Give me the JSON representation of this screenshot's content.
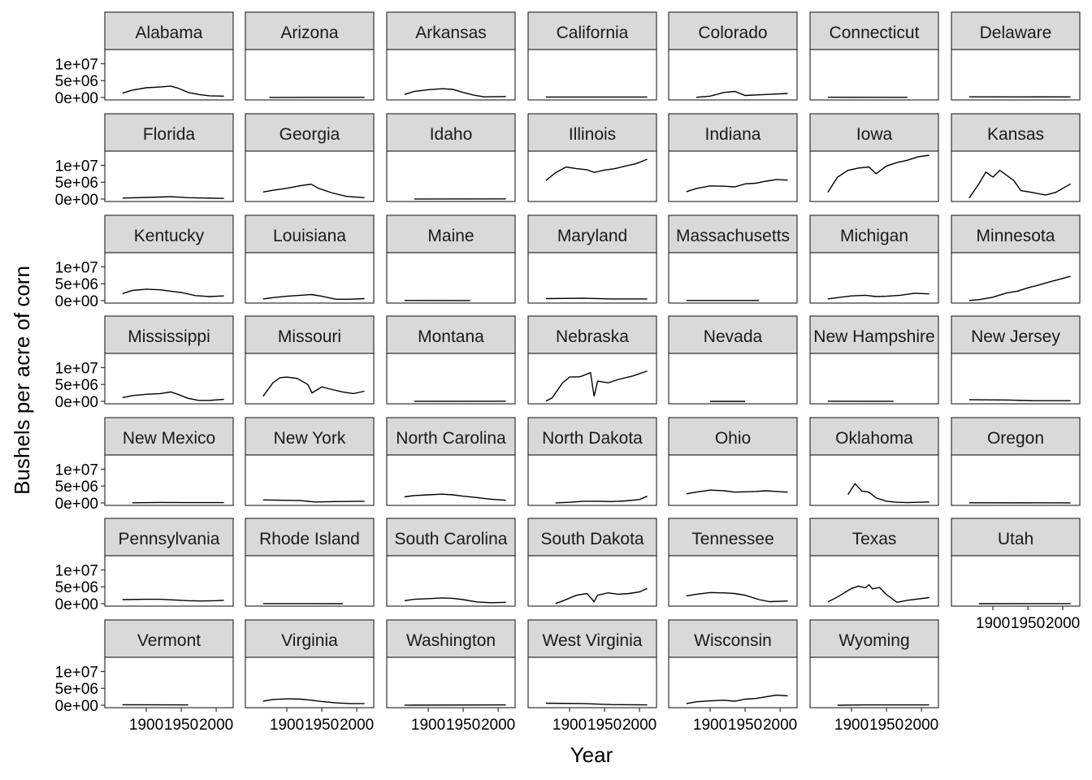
{
  "chart_data": {
    "type": "line",
    "facet": "state",
    "xlabel": "Year",
    "ylabel": "Bushels per acre of corn",
    "x_ticks": [
      "1900",
      "1950",
      "2000"
    ],
    "y_ticks": [
      "0e+00",
      "5e+06",
      "1e+07"
    ],
    "xlim": [
      1850,
      2015
    ],
    "ylim": [
      0,
      13000000
    ],
    "series": [
      {
        "name": "Alabama",
        "x": [
          1866,
          1880,
          1900,
          1920,
          1935,
          1945,
          1960,
          1975,
          1990,
          2011
        ],
        "y": [
          1300000,
          2200000,
          2900000,
          3100000,
          3400000,
          2800000,
          1500000,
          900000,
          500000,
          400000
        ]
      },
      {
        "name": "Arizona",
        "x": [
          1875,
          2011
        ],
        "y": [
          30000,
          40000
        ]
      },
      {
        "name": "Arkansas",
        "x": [
          1866,
          1880,
          1900,
          1920,
          1935,
          1950,
          1965,
          1980,
          2011
        ],
        "y": [
          900000,
          1800000,
          2300000,
          2600000,
          2400000,
          1500000,
          700000,
          200000,
          300000
        ]
      },
      {
        "name": "California",
        "x": [
          1866,
          2011
        ],
        "y": [
          150000,
          150000
        ]
      },
      {
        "name": "Colorado",
        "x": [
          1880,
          1900,
          1920,
          1935,
          1950,
          1980,
          2011
        ],
        "y": [
          40000,
          400000,
          1500000,
          1800000,
          600000,
          900000,
          1200000
        ]
      },
      {
        "name": "Connecticut",
        "x": [
          1866,
          1980
        ],
        "y": [
          80000,
          60000
        ]
      },
      {
        "name": "Delaware",
        "x": [
          1866,
          2011
        ],
        "y": [
          200000,
          180000
        ]
      },
      {
        "name": "Florida",
        "x": [
          1866,
          1920,
          1935,
          1960,
          2011
        ],
        "y": [
          300000,
          600000,
          700000,
          400000,
          200000
        ]
      },
      {
        "name": "Georgia",
        "x": [
          1866,
          1880,
          1900,
          1920,
          1935,
          1945,
          1965,
          1985,
          2011
        ],
        "y": [
          2100000,
          2600000,
          3200000,
          4000000,
          4400000,
          3200000,
          1800000,
          800000,
          400000
        ]
      },
      {
        "name": "Idaho",
        "x": [
          1880,
          2011
        ],
        "y": [
          20000,
          40000
        ]
      },
      {
        "name": "Illinois",
        "x": [
          1866,
          1880,
          1895,
          1910,
          1925,
          1935,
          1950,
          1965,
          1980,
          1995,
          2011
        ],
        "y": [
          5500000,
          7800000,
          9500000,
          9000000,
          8700000,
          7900000,
          8600000,
          9000000,
          9800000,
          10500000,
          11800000
        ]
      },
      {
        "name": "Indiana",
        "x": [
          1866,
          1880,
          1900,
          1920,
          1935,
          1950,
          1965,
          1980,
          1995,
          2011
        ],
        "y": [
          2200000,
          3100000,
          3900000,
          3800000,
          3600000,
          4500000,
          4700000,
          5300000,
          5800000,
          5600000
        ]
      },
      {
        "name": "Iowa",
        "x": [
          1866,
          1880,
          1895,
          1910,
          1925,
          1935,
          1950,
          1965,
          1980,
          1995,
          2011
        ],
        "y": [
          2000000,
          6500000,
          8500000,
          9200000,
          9500000,
          7500000,
          9800000,
          10800000,
          11500000,
          12500000,
          13000000
        ]
      },
      {
        "name": "Kansas",
        "x": [
          1866,
          1880,
          1890,
          1900,
          1910,
          1920,
          1930,
          1940,
          1955,
          1975,
          1990,
          2011
        ],
        "y": [
          300000,
          4500000,
          8000000,
          6500000,
          8500000,
          7000000,
          5500000,
          2500000,
          2000000,
          1200000,
          2000000,
          4500000
        ]
      },
      {
        "name": "Kentucky",
        "x": [
          1866,
          1880,
          1900,
          1920,
          1935,
          1950,
          1970,
          1990,
          2011
        ],
        "y": [
          2100000,
          3000000,
          3400000,
          3200000,
          2800000,
          2400000,
          1500000,
          1200000,
          1400000
        ]
      },
      {
        "name": "Louisiana",
        "x": [
          1866,
          1880,
          1900,
          1920,
          1935,
          1950,
          1970,
          1990,
          2011
        ],
        "y": [
          500000,
          900000,
          1300000,
          1600000,
          1800000,
          1300000,
          400000,
          400000,
          600000
        ]
      },
      {
        "name": "Maine",
        "x": [
          1866,
          1960
        ],
        "y": [
          50000,
          30000
        ]
      },
      {
        "name": "Maryland",
        "x": [
          1866,
          1920,
          1960,
          2011
        ],
        "y": [
          600000,
          700000,
          500000,
          500000
        ]
      },
      {
        "name": "Massachusetts",
        "x": [
          1866,
          1970
        ],
        "y": [
          60000,
          40000
        ]
      },
      {
        "name": "Michigan",
        "x": [
          1866,
          1880,
          1900,
          1920,
          1935,
          1950,
          1970,
          1990,
          2011
        ],
        "y": [
          500000,
          900000,
          1400000,
          1600000,
          1200000,
          1300000,
          1600000,
          2200000,
          2000000
        ]
      },
      {
        "name": "Minnesota",
        "x": [
          1866,
          1880,
          1900,
          1920,
          1935,
          1950,
          1965,
          1980,
          1995,
          2011
        ],
        "y": [
          50000,
          300000,
          1000000,
          2300000,
          2800000,
          3800000,
          4600000,
          5500000,
          6300000,
          7200000
        ]
      },
      {
        "name": "Mississippi",
        "x": [
          1866,
          1880,
          1900,
          1920,
          1935,
          1945,
          1960,
          1975,
          1990,
          2011
        ],
        "y": [
          1100000,
          1700000,
          2100000,
          2300000,
          2800000,
          2100000,
          900000,
          300000,
          300000,
          600000
        ]
      },
      {
        "name": "Missouri",
        "x": [
          1866,
          1880,
          1890,
          1900,
          1915,
          1930,
          1936,
          1950,
          1965,
          1980,
          1995,
          2011
        ],
        "y": [
          1500000,
          5500000,
          7000000,
          7200000,
          6800000,
          5000000,
          2500000,
          4300000,
          3500000,
          2800000,
          2300000,
          3000000
        ]
      },
      {
        "name": "Montana",
        "x": [
          1880,
          2011
        ],
        "y": [
          20000,
          40000
        ]
      },
      {
        "name": "Nebraska",
        "x": [
          1866,
          1875,
          1890,
          1900,
          1915,
          1930,
          1935,
          1940,
          1955,
          1970,
          1990,
          2011
        ],
        "y": [
          100000,
          1000000,
          5500000,
          7200000,
          7300000,
          8500000,
          1500000,
          6000000,
          5500000,
          6500000,
          7500000,
          9000000
        ]
      },
      {
        "name": "Nevada",
        "x": [
          1900,
          1950
        ],
        "y": [
          10000,
          10000
        ]
      },
      {
        "name": "New Hampshire",
        "x": [
          1866,
          1960
        ],
        "y": [
          40000,
          20000
        ]
      },
      {
        "name": "New Jersey",
        "x": [
          1866,
          1920,
          1960,
          2011
        ],
        "y": [
          500000,
          400000,
          200000,
          200000
        ]
      },
      {
        "name": "New Mexico",
        "x": [
          1880,
          1920,
          1960,
          2011
        ],
        "y": [
          50000,
          150000,
          100000,
          100000
        ]
      },
      {
        "name": "New York",
        "x": [
          1866,
          1920,
          1940,
          1970,
          2011
        ],
        "y": [
          900000,
          700000,
          300000,
          400000,
          500000
        ]
      },
      {
        "name": "North Carolina",
        "x": [
          1866,
          1880,
          1900,
          1920,
          1935,
          1950,
          1970,
          1990,
          2011
        ],
        "y": [
          1800000,
          2200000,
          2400000,
          2600000,
          2400000,
          2000000,
          1600000,
          1100000,
          800000
        ]
      },
      {
        "name": "North Dakota",
        "x": [
          1880,
          1900,
          1920,
          1940,
          1960,
          1980,
          2000,
          2011
        ],
        "y": [
          20000,
          200000,
          500000,
          500000,
          400000,
          600000,
          1000000,
          2000000
        ]
      },
      {
        "name": "Ohio",
        "x": [
          1866,
          1880,
          1900,
          1920,
          1935,
          1950,
          1965,
          1980,
          1995,
          2011
        ],
        "y": [
          2700000,
          3200000,
          3800000,
          3600000,
          3200000,
          3300000,
          3400000,
          3600000,
          3400000,
          3200000
        ]
      },
      {
        "name": "Oklahoma",
        "x": [
          1895,
          1905,
          1915,
          1925,
          1935,
          1950,
          1965,
          1980,
          2011
        ],
        "y": [
          2500000,
          5700000,
          3500000,
          3200000,
          1500000,
          500000,
          200000,
          100000,
          300000
        ]
      },
      {
        "name": "Oregon",
        "x": [
          1866,
          2011
        ],
        "y": [
          50000,
          30000
        ]
      },
      {
        "name": "Pennsylvania",
        "x": [
          1866,
          1900,
          1920,
          1940,
          1960,
          1980,
          2000,
          2011
        ],
        "y": [
          1200000,
          1300000,
          1300000,
          1100000,
          900000,
          800000,
          900000,
          1000000
        ]
      },
      {
        "name": "Rhode Island",
        "x": [
          1866,
          1980
        ],
        "y": [
          20000,
          10000
        ]
      },
      {
        "name": "South Carolina",
        "x": [
          1866,
          1880,
          1900,
          1920,
          1935,
          1950,
          1970,
          1990,
          2011
        ],
        "y": [
          900000,
          1300000,
          1500000,
          1700000,
          1600000,
          1200000,
          500000,
          300000,
          400000
        ]
      },
      {
        "name": "South Dakota",
        "x": [
          1880,
          1890,
          1910,
          1925,
          1935,
          1940,
          1955,
          1970,
          1985,
          2000,
          2011
        ],
        "y": [
          50000,
          800000,
          2500000,
          3000000,
          600000,
          2500000,
          3200000,
          2800000,
          3000000,
          3500000,
          4500000
        ]
      },
      {
        "name": "Tennessee",
        "x": [
          1866,
          1880,
          1900,
          1920,
          1935,
          1950,
          1970,
          1985,
          2011
        ],
        "y": [
          2300000,
          2800000,
          3300000,
          3200000,
          3000000,
          2500000,
          1200000,
          600000,
          800000
        ]
      },
      {
        "name": "Texas",
        "x": [
          1866,
          1880,
          1900,
          1910,
          1920,
          1925,
          1930,
          1940,
          1950,
          1965,
          1980,
          2011
        ],
        "y": [
          500000,
          2000000,
          4500000,
          5200000,
          4700000,
          5600000,
          4400000,
          4800000,
          2700000,
          400000,
          1000000,
          1800000
        ]
      },
      {
        "name": "Utah",
        "x": [
          1880,
          2011
        ],
        "y": [
          10000,
          20000
        ]
      },
      {
        "name": "Vermont",
        "x": [
          1866,
          1960
        ],
        "y": [
          150000,
          100000
        ]
      },
      {
        "name": "Virginia",
        "x": [
          1866,
          1880,
          1900,
          1920,
          1935,
          1950,
          1970,
          1990,
          2011
        ],
        "y": [
          1200000,
          1700000,
          1900000,
          1800000,
          1500000,
          1100000,
          700000,
          500000,
          500000
        ]
      },
      {
        "name": "Washington",
        "x": [
          1866,
          2011
        ],
        "y": [
          20000,
          100000
        ]
      },
      {
        "name": "West Virginia",
        "x": [
          1866,
          1920,
          1960,
          2011
        ],
        "y": [
          600000,
          500000,
          200000,
          100000
        ]
      },
      {
        "name": "Wisconsin",
        "x": [
          1866,
          1880,
          1900,
          1920,
          1935,
          1950,
          1965,
          1980,
          1995,
          2011
        ],
        "y": [
          500000,
          1000000,
          1300000,
          1500000,
          1200000,
          1800000,
          2000000,
          2500000,
          3000000,
          2800000
        ]
      },
      {
        "name": "Wyoming",
        "x": [
          1880,
          1920,
          1960,
          2011
        ],
        "y": [
          10000,
          100000,
          100000,
          100000
        ]
      }
    ]
  }
}
